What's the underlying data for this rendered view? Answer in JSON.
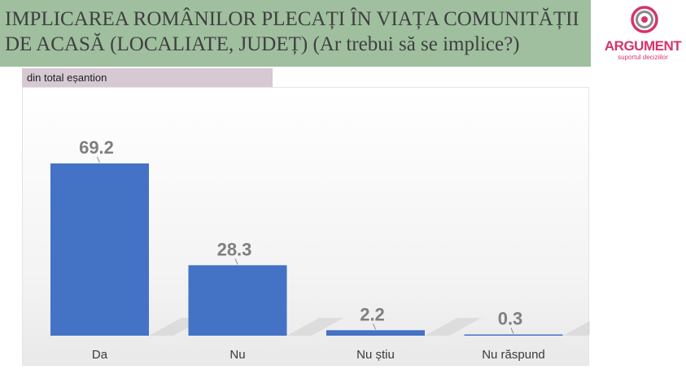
{
  "header": {
    "title": "IMPLICAREA ROMÂNILOR PLECAȚI ÎN VIAȚA COMUNITĂȚII DE ACASĂ (LOCALIATE, JUDEȚ) (Ar trebui să se implice?)",
    "subtitle": "din total eșantion"
  },
  "logo": {
    "name": "ARGUMENT",
    "tagline": "suportul deciziilor",
    "icon": "argument-ring-logo",
    "color": "#d6336c"
  },
  "colors": {
    "bar": "#4472c4",
    "label": "#7f7f7f",
    "title_band": "#9fbf9f",
    "subtitle_tab": "#d6c9d3"
  },
  "chart_data": {
    "type": "bar",
    "categories": [
      "Da",
      "Nu",
      "Nu știu",
      "Nu răspund"
    ],
    "values": [
      69.2,
      28.3,
      2.2,
      0.3
    ],
    "value_labels": [
      "69.2",
      "28.3",
      "2.2",
      "0.3"
    ],
    "title": "IMPLICAREA ROMÂNILOR PLECAȚI ÎN VIAȚA COMUNITĂȚII DE ACASĂ (LOCALIATE, JUDEȚ) (Ar trebui să se implice?)",
    "xlabel": "",
    "ylabel": "",
    "ylim": [
      0,
      80
    ],
    "grid": false,
    "legend": "none"
  }
}
